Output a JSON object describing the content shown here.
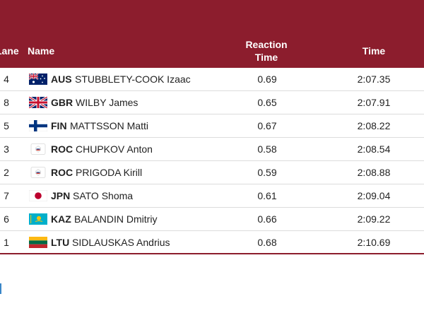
{
  "table": {
    "headers": {
      "lane": "Lane",
      "name": "Name",
      "reaction_line1": "Reaction",
      "reaction_line2": "Time",
      "time": "Time"
    },
    "rows": [
      {
        "lane": "4",
        "noc": "AUS",
        "flag_icon": "australia-flag-icon",
        "name": "STUBBLETY-COOK Izaac",
        "reaction": "0.69",
        "time": "2:07.35"
      },
      {
        "lane": "8",
        "noc": "GBR",
        "flag_icon": "great-britain-flag-icon",
        "name": "WILBY James",
        "reaction": "0.65",
        "time": "2:07.91"
      },
      {
        "lane": "5",
        "noc": "FIN",
        "flag_icon": "finland-flag-icon",
        "name": "MATTSSON Matti",
        "reaction": "0.67",
        "time": "2:08.22"
      },
      {
        "lane": "3",
        "noc": "ROC",
        "flag_icon": "roc-flag-icon",
        "name": "CHUPKOV Anton",
        "reaction": "0.58",
        "time": "2:08.54"
      },
      {
        "lane": "2",
        "noc": "ROC",
        "flag_icon": "roc-flag-icon",
        "name": "PRIGODA Kirill",
        "reaction": "0.59",
        "time": "2:08.88"
      },
      {
        "lane": "7",
        "noc": "JPN",
        "flag_icon": "japan-flag-icon",
        "name": "SATO Shoma",
        "reaction": "0.61",
        "time": "2:09.04"
      },
      {
        "lane": "6",
        "noc": "KAZ",
        "flag_icon": "kazakhstan-flag-icon",
        "name": "BALANDIN Dmitriy",
        "reaction": "0.66",
        "time": "2:09.22"
      },
      {
        "lane": "1",
        "noc": "LTU",
        "flag_icon": "lithuania-flag-icon",
        "name": "SIDLAUSKAS Andrius",
        "reaction": "0.68",
        "time": "2:10.69"
      }
    ]
  },
  "colors": {
    "header_bg": "#8c1d2d",
    "header_text": "#ffffff",
    "row_border": "#dcdcdc"
  }
}
